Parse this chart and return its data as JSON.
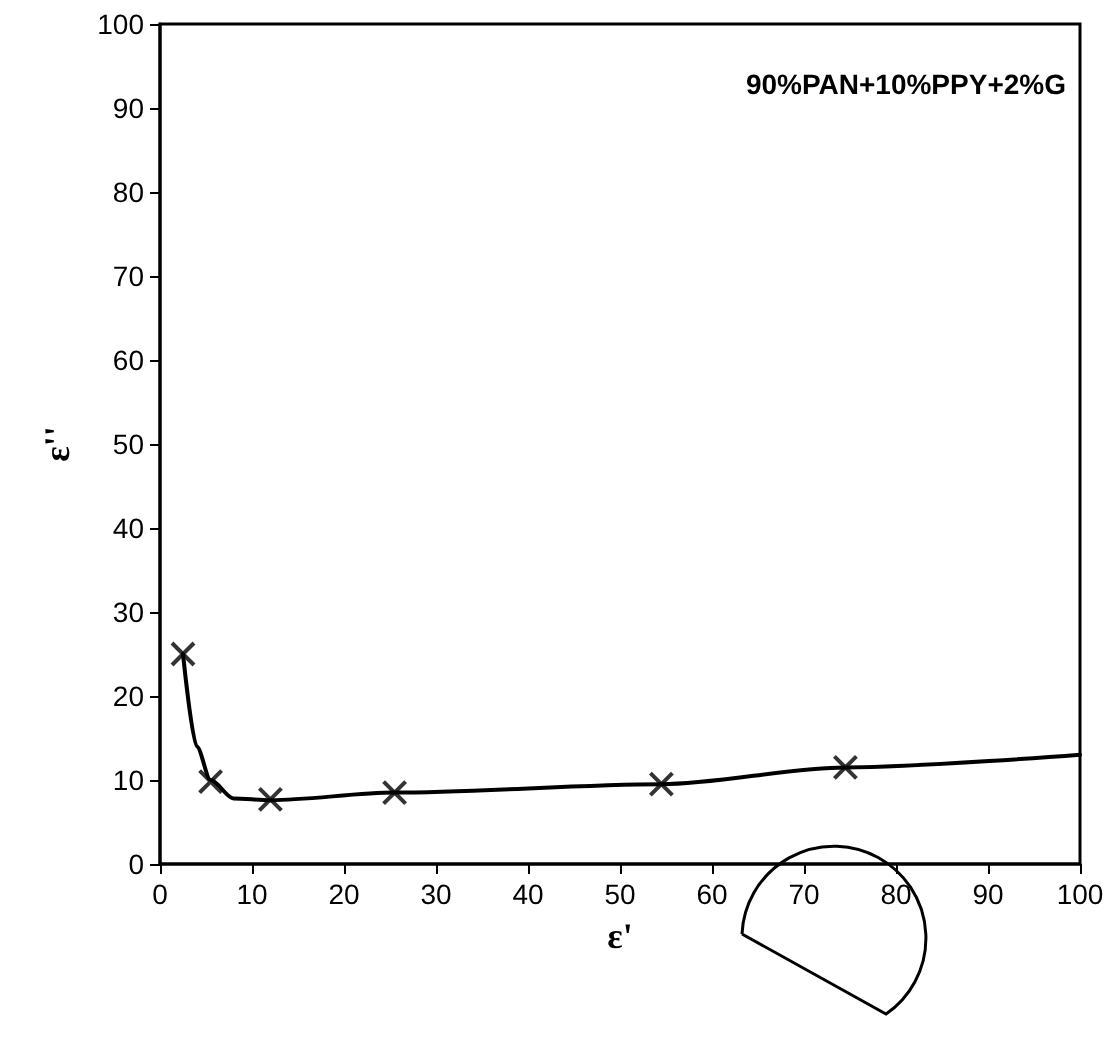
{
  "chart_data": {
    "type": "scatter",
    "xlabel": "ε'",
    "ylabel": "ε''",
    "annotations": [
      "90%PAN+10%PPY+2%G"
    ],
    "series": [
      {
        "type": "line",
        "color": "#000000",
        "marker": "none",
        "line_style": "solid",
        "x": [
          2.5,
          4,
          5.5,
          8,
          12,
          25.5,
          54.5,
          74.5,
          100
        ],
        "values": [
          25,
          14,
          10,
          7.8,
          7.6,
          8.5,
          9.5,
          11.5,
          13
        ]
      },
      {
        "color": "#000000",
        "marker": "cross",
        "x": [
          2.5,
          5.5,
          12,
          25.5,
          54.5,
          74.5
        ],
        "values": [
          25,
          9.8,
          7.7,
          8.5,
          9.5,
          11.5
        ]
      }
    ],
    "xlim": [
      0,
      100
    ],
    "xticks": [
      0,
      10,
      20,
      30,
      40,
      50,
      60,
      70,
      80,
      90,
      100
    ],
    "ylim": [
      0,
      100
    ],
    "yticks": [
      0,
      10,
      20,
      30,
      40,
      50,
      60,
      70,
      80,
      90,
      100
    ],
    "grid": false
  }
}
